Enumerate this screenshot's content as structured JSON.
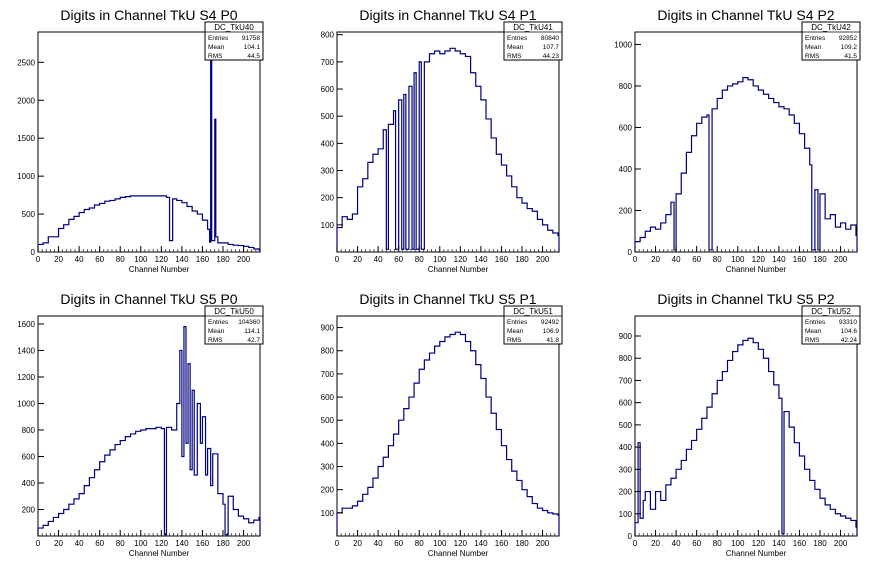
{
  "chart_data": [
    {
      "type": "bar",
      "histogram": true,
      "title": "Digits in Channel TkU S4 P0",
      "xlabel": "Channel Number",
      "ylabel": "",
      "xlim": [
        0,
        216
      ],
      "ylim": [
        0,
        2900
      ],
      "xticks": [
        0,
        20,
        40,
        60,
        80,
        100,
        120,
        140,
        160,
        180,
        200
      ],
      "yticks": [
        0,
        500,
        1000,
        1500,
        2000,
        2500
      ],
      "stats": {
        "name": "DC_TkU40",
        "entries": "91758",
        "mean": "104.1",
        "rms": "44.5"
      },
      "points": [
        [
          0,
          100
        ],
        [
          5,
          120
        ],
        [
          10,
          200
        ],
        [
          15,
          200
        ],
        [
          20,
          310
        ],
        [
          25,
          360
        ],
        [
          30,
          430
        ],
        [
          35,
          470
        ],
        [
          40,
          520
        ],
        [
          45,
          560
        ],
        [
          50,
          580
        ],
        [
          55,
          620
        ],
        [
          60,
          640
        ],
        [
          65,
          670
        ],
        [
          70,
          680
        ],
        [
          75,
          700
        ],
        [
          80,
          720
        ],
        [
          85,
          730
        ],
        [
          90,
          740
        ],
        [
          95,
          740
        ],
        [
          100,
          740
        ],
        [
          105,
          740
        ],
        [
          110,
          740
        ],
        [
          115,
          740
        ],
        [
          120,
          740
        ],
        [
          125,
          720
        ],
        [
          128,
          150
        ],
        [
          131,
          700
        ],
        [
          135,
          680
        ],
        [
          140,
          650
        ],
        [
          145,
          600
        ],
        [
          150,
          540
        ],
        [
          155,
          500
        ],
        [
          160,
          420
        ],
        [
          165,
          300
        ],
        [
          167,
          130
        ],
        [
          168,
          2830
        ],
        [
          169,
          150
        ],
        [
          172,
          1750
        ],
        [
          173,
          200
        ],
        [
          175,
          120
        ],
        [
          180,
          120
        ],
        [
          185,
          100
        ],
        [
          190,
          90
        ],
        [
          195,
          85
        ],
        [
          200,
          75
        ],
        [
          205,
          60
        ],
        [
          210,
          40
        ],
        [
          215,
          30
        ]
      ]
    },
    {
      "type": "bar",
      "histogram": true,
      "title": "Digits in Channel TkU S4 P1",
      "xlabel": "Channel Number",
      "ylabel": "",
      "xlim": [
        0,
        216
      ],
      "ylim": [
        0,
        810
      ],
      "xticks": [
        0,
        20,
        40,
        60,
        80,
        100,
        120,
        140,
        160,
        180,
        200
      ],
      "yticks": [
        100,
        200,
        300,
        400,
        500,
        600,
        700,
        800
      ],
      "stats": {
        "name": "DC_TkU41",
        "entries": "80840",
        "mean": "107.7",
        "rms": "44.23"
      },
      "points": [
        [
          0,
          90
        ],
        [
          5,
          130
        ],
        [
          10,
          120
        ],
        [
          15,
          140
        ],
        [
          20,
          240
        ],
        [
          25,
          270
        ],
        [
          30,
          330
        ],
        [
          35,
          360
        ],
        [
          40,
          380
        ],
        [
          45,
          450
        ],
        [
          48,
          10
        ],
        [
          50,
          470
        ],
        [
          55,
          520
        ],
        [
          57,
          10
        ],
        [
          60,
          560
        ],
        [
          63,
          10
        ],
        [
          65,
          580
        ],
        [
          67,
          10
        ],
        [
          70,
          610
        ],
        [
          73,
          10
        ],
        [
          75,
          660
        ],
        [
          77,
          10
        ],
        [
          80,
          700
        ],
        [
          82,
          10
        ],
        [
          85,
          700
        ],
        [
          90,
          730
        ],
        [
          95,
          740
        ],
        [
          100,
          730
        ],
        [
          105,
          740
        ],
        [
          110,
          750
        ],
        [
          115,
          740
        ],
        [
          120,
          730
        ],
        [
          125,
          720
        ],
        [
          130,
          660
        ],
        [
          135,
          610
        ],
        [
          140,
          560
        ],
        [
          145,
          490
        ],
        [
          150,
          420
        ],
        [
          155,
          360
        ],
        [
          160,
          320
        ],
        [
          165,
          280
        ],
        [
          170,
          240
        ],
        [
          175,
          200
        ],
        [
          180,
          180
        ],
        [
          185,
          160
        ],
        [
          190,
          150
        ],
        [
          195,
          120
        ],
        [
          200,
          100
        ],
        [
          205,
          80
        ],
        [
          210,
          70
        ],
        [
          215,
          60
        ]
      ]
    },
    {
      "type": "bar",
      "histogram": true,
      "title": "Digits in Channel TkU S4 P2",
      "xlabel": "Channel Number",
      "ylabel": "",
      "xlim": [
        0,
        216
      ],
      "ylim": [
        0,
        1060
      ],
      "xticks": [
        0,
        20,
        40,
        60,
        80,
        100,
        120,
        140,
        160,
        180,
        200
      ],
      "yticks": [
        0,
        200,
        400,
        600,
        800,
        1000
      ],
      "stats": {
        "name": "DC_TkU42",
        "entries": "92852",
        "mean": "109.2",
        "rms": "41.5"
      },
      "points": [
        [
          0,
          50
        ],
        [
          5,
          70
        ],
        [
          10,
          100
        ],
        [
          15,
          120
        ],
        [
          20,
          110
        ],
        [
          25,
          140
        ],
        [
          30,
          180
        ],
        [
          35,
          240
        ],
        [
          38,
          10
        ],
        [
          40,
          280
        ],
        [
          45,
          380
        ],
        [
          50,
          480
        ],
        [
          55,
          560
        ],
        [
          60,
          620
        ],
        [
          65,
          650
        ],
        [
          70,
          660
        ],
        [
          72,
          10
        ],
        [
          75,
          690
        ],
        [
          80,
          740
        ],
        [
          85,
          780
        ],
        [
          90,
          800
        ],
        [
          95,
          810
        ],
        [
          100,
          820
        ],
        [
          105,
          840
        ],
        [
          110,
          830
        ],
        [
          115,
          800
        ],
        [
          120,
          780
        ],
        [
          125,
          760
        ],
        [
          130,
          740
        ],
        [
          135,
          720
        ],
        [
          140,
          700
        ],
        [
          145,
          690
        ],
        [
          150,
          660
        ],
        [
          155,
          620
        ],
        [
          160,
          570
        ],
        [
          165,
          500
        ],
        [
          170,
          420
        ],
        [
          172,
          10
        ],
        [
          175,
          300
        ],
        [
          178,
          10
        ],
        [
          180,
          280
        ],
        [
          185,
          160
        ],
        [
          190,
          180
        ],
        [
          195,
          120
        ],
        [
          200,
          140
        ],
        [
          205,
          110
        ],
        [
          210,
          130
        ],
        [
          215,
          80
        ]
      ]
    },
    {
      "type": "bar",
      "histogram": true,
      "title": "Digits in Channel TkU S5 P0",
      "xlabel": "Channel Number",
      "ylabel": "",
      "xlim": [
        0,
        216
      ],
      "ylim": [
        0,
        1660
      ],
      "xticks": [
        0,
        20,
        40,
        60,
        80,
        100,
        120,
        140,
        160,
        180,
        200
      ],
      "yticks": [
        200,
        400,
        600,
        800,
        1000,
        1200,
        1400,
        1600
      ],
      "stats": {
        "name": "DC_TkU50",
        "entries": "104360",
        "mean": "114.1",
        "rms": "42.7"
      },
      "points": [
        [
          0,
          60
        ],
        [
          5,
          80
        ],
        [
          10,
          110
        ],
        [
          15,
          140
        ],
        [
          20,
          170
        ],
        [
          25,
          200
        ],
        [
          30,
          240
        ],
        [
          35,
          280
        ],
        [
          40,
          320
        ],
        [
          45,
          380
        ],
        [
          50,
          440
        ],
        [
          55,
          500
        ],
        [
          60,
          560
        ],
        [
          65,
          610
        ],
        [
          70,
          650
        ],
        [
          75,
          690
        ],
        [
          80,
          720
        ],
        [
          85,
          750
        ],
        [
          90,
          770
        ],
        [
          95,
          790
        ],
        [
          100,
          800
        ],
        [
          105,
          810
        ],
        [
          110,
          810
        ],
        [
          115,
          820
        ],
        [
          120,
          810
        ],
        [
          123,
          10
        ],
        [
          125,
          820
        ],
        [
          130,
          800
        ],
        [
          135,
          1000
        ],
        [
          138,
          1400
        ],
        [
          140,
          600
        ],
        [
          142,
          1580
        ],
        [
          144,
          700
        ],
        [
          146,
          1300
        ],
        [
          148,
          500
        ],
        [
          150,
          1100
        ],
        [
          152,
          460
        ],
        [
          155,
          1000
        ],
        [
          158,
          700
        ],
        [
          160,
          900
        ],
        [
          163,
          460
        ],
        [
          165,
          660
        ],
        [
          168,
          380
        ],
        [
          170,
          620
        ],
        [
          175,
          320
        ],
        [
          180,
          240
        ],
        [
          182,
          10
        ],
        [
          185,
          300
        ],
        [
          190,
          200
        ],
        [
          195,
          150
        ],
        [
          200,
          130
        ],
        [
          205,
          100
        ],
        [
          210,
          120
        ],
        [
          215,
          140
        ]
      ]
    },
    {
      "type": "bar",
      "histogram": true,
      "title": "Digits in Channel TkU S5 P1",
      "xlabel": "Channel Number",
      "ylabel": "",
      "xlim": [
        0,
        216
      ],
      "ylim": [
        0,
        950
      ],
      "xticks": [
        0,
        20,
        40,
        60,
        80,
        100,
        120,
        140,
        160,
        180,
        200
      ],
      "yticks": [
        100,
        200,
        300,
        400,
        500,
        600,
        700,
        800,
        900
      ],
      "stats": {
        "name": "DC_TkU51",
        "entries": "92492",
        "mean": "106.9",
        "rms": "41.8"
      },
      "points": [
        [
          0,
          100
        ],
        [
          5,
          120
        ],
        [
          10,
          120
        ],
        [
          15,
          130
        ],
        [
          20,
          150
        ],
        [
          25,
          180
        ],
        [
          30,
          210
        ],
        [
          35,
          250
        ],
        [
          40,
          300
        ],
        [
          45,
          340
        ],
        [
          50,
          390
        ],
        [
          55,
          440
        ],
        [
          60,
          500
        ],
        [
          65,
          550
        ],
        [
          70,
          600
        ],
        [
          75,
          660
        ],
        [
          80,
          720
        ],
        [
          85,
          760
        ],
        [
          90,
          790
        ],
        [
          95,
          820
        ],
        [
          100,
          840
        ],
        [
          105,
          860
        ],
        [
          110,
          870
        ],
        [
          115,
          880
        ],
        [
          120,
          870
        ],
        [
          125,
          840
        ],
        [
          130,
          800
        ],
        [
          135,
          740
        ],
        [
          140,
          680
        ],
        [
          145,
          600
        ],
        [
          150,
          530
        ],
        [
          155,
          460
        ],
        [
          160,
          390
        ],
        [
          165,
          330
        ],
        [
          170,
          280
        ],
        [
          175,
          240
        ],
        [
          180,
          200
        ],
        [
          185,
          170
        ],
        [
          190,
          140
        ],
        [
          195,
          120
        ],
        [
          200,
          110
        ],
        [
          205,
          100
        ],
        [
          210,
          95
        ],
        [
          215,
          90
        ]
      ]
    },
    {
      "type": "bar",
      "histogram": true,
      "title": "Digits in Channel TkU S5 P2",
      "xlabel": "Channel Number",
      "ylabel": "",
      "xlim": [
        0,
        216
      ],
      "ylim": [
        0,
        990
      ],
      "xticks": [
        0,
        20,
        40,
        60,
        80,
        100,
        120,
        140,
        160,
        180,
        200
      ],
      "yticks": [
        0,
        100,
        200,
        300,
        400,
        500,
        600,
        700,
        800,
        900
      ],
      "stats": {
        "name": "DC_TkU52",
        "entries": "93310",
        "mean": "104.6",
        "rms": "42.24"
      },
      "points": [
        [
          0,
          60
        ],
        [
          3,
          420
        ],
        [
          5,
          80
        ],
        [
          8,
          160
        ],
        [
          10,
          200
        ],
        [
          15,
          120
        ],
        [
          20,
          200
        ],
        [
          25,
          160
        ],
        [
          30,
          230
        ],
        [
          35,
          260
        ],
        [
          40,
          300
        ],
        [
          45,
          340
        ],
        [
          50,
          390
        ],
        [
          55,
          430
        ],
        [
          60,
          480
        ],
        [
          65,
          530
        ],
        [
          70,
          580
        ],
        [
          75,
          640
        ],
        [
          80,
          700
        ],
        [
          85,
          740
        ],
        [
          90,
          790
        ],
        [
          95,
          830
        ],
        [
          100,
          860
        ],
        [
          105,
          880
        ],
        [
          110,
          890
        ],
        [
          115,
          870
        ],
        [
          120,
          840
        ],
        [
          125,
          800
        ],
        [
          130,
          740
        ],
        [
          135,
          680
        ],
        [
          140,
          620
        ],
        [
          143,
          10
        ],
        [
          145,
          560
        ],
        [
          150,
          490
        ],
        [
          155,
          420
        ],
        [
          160,
          360
        ],
        [
          165,
          300
        ],
        [
          170,
          250
        ],
        [
          175,
          210
        ],
        [
          180,
          170
        ],
        [
          185,
          140
        ],
        [
          190,
          120
        ],
        [
          195,
          100
        ],
        [
          200,
          90
        ],
        [
          205,
          80
        ],
        [
          210,
          70
        ],
        [
          215,
          40
        ]
      ]
    }
  ],
  "labels": {
    "entries": "Entries",
    "mean": "Mean",
    "rms": "RMS"
  },
  "colors": {
    "line": "#000080",
    "axis": "#000000",
    "background": "#ffffff"
  }
}
